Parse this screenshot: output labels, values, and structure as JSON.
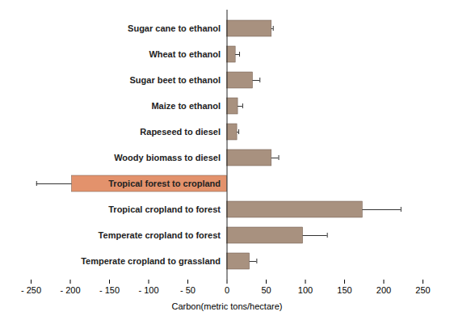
{
  "chart_data": {
    "type": "bar",
    "orientation": "horizontal",
    "categories": [
      "Sugar cane to ethanol",
      "Wheat to ethanol",
      "Sugar beet to ethanol",
      "Maize to ethanol",
      "Rapeseed to diesel",
      "Woody biomass to diesel",
      "Tropical forest to cropland",
      "Tropical cropland to forest",
      "Temperate cropland to forest",
      "Temperate cropland to grassland"
    ],
    "values": [
      57,
      11,
      33,
      14,
      13,
      57,
      -198,
      173,
      97,
      29
    ],
    "errors": [
      2,
      5,
      9,
      6,
      2,
      9,
      45,
      49,
      31,
      9
    ],
    "colors": [
      "#a8917f",
      "#a8917f",
      "#a8917f",
      "#a8917f",
      "#a8917f",
      "#a8917f",
      "#e3926c",
      "#a8917f",
      "#a8917f",
      "#a8917f"
    ],
    "xlim": [
      -250,
      250
    ],
    "xticks": [
      {
        "value": -250,
        "label": "- 250"
      },
      {
        "value": -200,
        "label": "- 200"
      },
      {
        "value": -150,
        "label": "- 150"
      },
      {
        "value": -100,
        "label": "- 100"
      },
      {
        "value": -50,
        "label": "- 50"
      },
      0,
      50,
      100,
      150,
      200,
      250
    ],
    "xlabel": "Carbon(metric tons/hectare)",
    "grid": false
  }
}
